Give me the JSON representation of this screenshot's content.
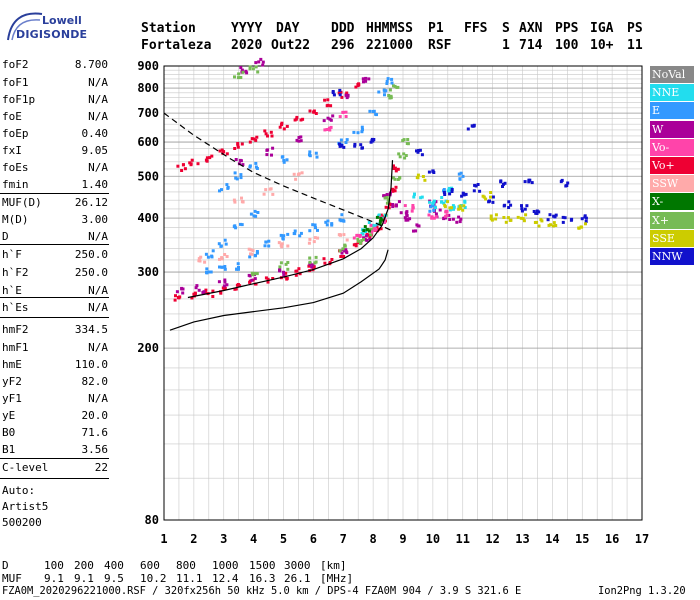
{
  "logo": {
    "line1": "Lowell",
    "line2": "DIGISONDE"
  },
  "header": {
    "row1": [
      "Station",
      "YYYY",
      "DAY",
      "DDD",
      "HHMMSS",
      "P1",
      "FFS",
      "S",
      "AXN",
      "PPS",
      "IGA",
      "PS"
    ],
    "row2": [
      "Fortaleza",
      "2020",
      "Out22",
      "296",
      "221000",
      "RSF",
      "1",
      "714",
      "100",
      "10+",
      "11"
    ]
  },
  "params": [
    {
      "label": "foF2",
      "value": "8.700"
    },
    {
      "label": "foF1",
      "value": "N/A"
    },
    {
      "label": "foF1p",
      "value": "N/A"
    },
    {
      "label": "foE",
      "value": "N/A"
    },
    {
      "label": "foEp",
      "value": "0.40"
    },
    {
      "label": "fxI",
      "value": "9.05"
    },
    {
      "label": "foEs",
      "value": "N/A"
    },
    {
      "label": "fmin",
      "value": "1.40"
    },
    {
      "label": "MUF(D)",
      "value": "26.12"
    },
    {
      "label": "M(D)",
      "value": "3.00"
    },
    {
      "label": "D",
      "value": "N/A"
    },
    {
      "label": "h`F",
      "value": "250.0"
    },
    {
      "label": "h`F2",
      "value": "250.0"
    },
    {
      "label": "h`E",
      "value": "N/A"
    },
    {
      "label": "h`Es",
      "value": "N/A"
    },
    {
      "label": "hmF2",
      "value": "334.5"
    },
    {
      "label": "hmF1",
      "value": "N/A"
    },
    {
      "label": "hmE",
      "value": "110.0"
    },
    {
      "label": "yF2",
      "value": "82.0"
    },
    {
      "label": "yF1",
      "value": "N/A"
    },
    {
      "label": "yE",
      "value": "20.0"
    },
    {
      "label": "B0",
      "value": "71.6"
    },
    {
      "label": "B1",
      "value": "3.56"
    },
    {
      "label": "C-level",
      "value": "22"
    }
  ],
  "auto": {
    "line1": "Auto:",
    "line2": "Artist5",
    "line3": "500200"
  },
  "legend": [
    {
      "label": "NoVal",
      "color": "#888888"
    },
    {
      "label": "NNE",
      "color": "#22ddee"
    },
    {
      "label": "E",
      "color": "#3399ff"
    },
    {
      "label": "W",
      "color": "#aa0099"
    },
    {
      "label": "Vo-",
      "color": "#ff44aa"
    },
    {
      "label": "Vo+",
      "color": "#ee0033"
    },
    {
      "label": "SSW",
      "color": "#ffaaaa"
    },
    {
      "label": "X-",
      "color": "#007700"
    },
    {
      "label": "X+",
      "color": "#77bb55"
    },
    {
      "label": "SSE",
      "color": "#cccc00"
    },
    {
      "label": "NNW",
      "color": "#1111cc"
    }
  ],
  "footer": {
    "d_label": "D",
    "d_values": [
      "100",
      "200",
      "400",
      "600",
      "800",
      "1000",
      "1500",
      "3000",
      "[km]"
    ],
    "muf_label": "MUF",
    "muf_values": [
      "9.1",
      "9.1",
      "9.5",
      "10.2",
      "11.1",
      "12.4",
      "16.3",
      "26.1",
      "[MHz]"
    ],
    "file_line": "FZA0M_2020296221000.RSF / 320fx256h 50 kHz 5.0 km / DPS-4 FZA0M 904 / 3.9 S 321.6 E",
    "version": "Ion2Png 1.3.20"
  },
  "chart_data": {
    "type": "scatter",
    "xlim": [
      1,
      17
    ],
    "ylim": [
      80,
      900
    ],
    "y_axis": "log",
    "xticks": [
      1,
      2,
      3,
      4,
      5,
      6,
      7,
      8,
      9,
      10,
      11,
      12,
      13,
      14,
      15,
      16,
      17
    ],
    "yticks": [
      80,
      200,
      300,
      400,
      500,
      600,
      700,
      800,
      900
    ],
    "grid": true,
    "series": [
      {
        "name": "Vo+",
        "points": [
          [
            1.5,
            262
          ],
          [
            2,
            264
          ],
          [
            2.5,
            268
          ],
          [
            3,
            273
          ],
          [
            3.5,
            278
          ],
          [
            4,
            283
          ],
          [
            4.5,
            288
          ],
          [
            5,
            294
          ],
          [
            5.5,
            300
          ],
          [
            6,
            308
          ],
          [
            6.5,
            318
          ],
          [
            7,
            330
          ],
          [
            7.5,
            345
          ],
          [
            7.9,
            360
          ],
          [
            8.2,
            380
          ],
          [
            8.4,
            400
          ],
          [
            8.55,
            430
          ],
          [
            8.65,
            470
          ],
          [
            8.7,
            520
          ],
          [
            1.6,
            525
          ],
          [
            2,
            535
          ],
          [
            2.5,
            550
          ],
          [
            3,
            565
          ],
          [
            3.5,
            585
          ],
          [
            4,
            605
          ],
          [
            4.5,
            630
          ],
          [
            5,
            655
          ],
          [
            5.5,
            680
          ],
          [
            6,
            705
          ],
          [
            6.5,
            740
          ],
          [
            7,
            775
          ],
          [
            7.5,
            805
          ]
        ]
      },
      {
        "name": "W",
        "points": [
          [
            1.6,
            270
          ],
          [
            2.2,
            274
          ],
          [
            3,
            283
          ],
          [
            4,
            292
          ],
          [
            5,
            300
          ],
          [
            6,
            312
          ],
          [
            7,
            335
          ],
          [
            7.8,
            360
          ],
          [
            8.5,
            450
          ],
          [
            8.8,
            430
          ],
          [
            9,
            410
          ],
          [
            9.2,
            400
          ],
          [
            9.5,
            380
          ],
          [
            10,
            430
          ],
          [
            10.2,
            410
          ],
          [
            10.5,
            400
          ],
          [
            10.8,
            395
          ],
          [
            3.5,
            540
          ],
          [
            4.5,
            570
          ],
          [
            5.5,
            610
          ],
          [
            6.5,
            680
          ],
          [
            7.2,
            760
          ],
          [
            7.8,
            830
          ],
          [
            4.2,
            920
          ],
          [
            3.7,
            880
          ]
        ]
      },
      {
        "name": "X+",
        "points": [
          [
            4,
            300
          ],
          [
            5,
            310
          ],
          [
            6,
            320
          ],
          [
            7,
            340
          ],
          [
            7.6,
            355
          ],
          [
            8,
            372
          ],
          [
            8.3,
            400
          ],
          [
            8.5,
            440
          ],
          [
            8.8,
            500
          ],
          [
            9,
            560
          ],
          [
            9.1,
            600
          ],
          [
            8.5,
            760
          ],
          [
            8.7,
            800
          ],
          [
            3.5,
            860
          ],
          [
            4,
            880
          ]
        ]
      },
      {
        "name": "E",
        "points": [
          [
            2.5,
            300
          ],
          [
            3,
            305
          ],
          [
            3.5,
            310
          ],
          [
            4,
            330
          ],
          [
            4.5,
            350
          ],
          [
            5,
            360
          ],
          [
            5.5,
            370
          ],
          [
            6,
            380
          ],
          [
            6.5,
            390
          ],
          [
            7,
            400
          ],
          [
            2.5,
            330
          ],
          [
            3,
            350
          ],
          [
            3.5,
            380
          ],
          [
            4,
            410
          ],
          [
            3,
            470
          ],
          [
            3.5,
            500
          ],
          [
            4,
            530
          ],
          [
            5,
            545
          ],
          [
            6,
            560
          ],
          [
            7,
            600
          ],
          [
            7.5,
            640
          ],
          [
            8,
            700
          ],
          [
            8.3,
            780
          ],
          [
            8.5,
            830
          ],
          [
            10,
            420
          ],
          [
            10.5,
            460
          ],
          [
            11,
            500
          ]
        ]
      },
      {
        "name": "NNE",
        "points": [
          [
            7.6,
            372
          ],
          [
            8,
            385
          ],
          [
            8.3,
            400
          ],
          [
            10,
            430
          ],
          [
            10.3,
            440
          ],
          [
            10.6,
            420
          ],
          [
            11,
            430
          ],
          [
            9.5,
            450
          ],
          [
            10.5,
            470
          ]
        ]
      },
      {
        "name": "SSW",
        "points": [
          [
            2.3,
            320
          ],
          [
            3,
            325
          ],
          [
            4,
            335
          ],
          [
            5,
            345
          ],
          [
            6,
            355
          ],
          [
            7,
            362
          ],
          [
            3.5,
            440
          ],
          [
            4.5,
            460
          ],
          [
            5.5,
            500
          ]
        ]
      },
      {
        "name": "Vo-",
        "points": [
          [
            7.5,
            362
          ],
          [
            8,
            378
          ],
          [
            8.4,
            395
          ],
          [
            9.2,
            420
          ],
          [
            10,
            400
          ],
          [
            10.5,
            410
          ],
          [
            6.5,
            640
          ],
          [
            7,
            700
          ]
        ]
      },
      {
        "name": "NNW",
        "points": [
          [
            7,
            590
          ],
          [
            7.5,
            585
          ],
          [
            8,
            600
          ],
          [
            9.5,
            570
          ],
          [
            10,
            510
          ],
          [
            10.5,
            460
          ],
          [
            11,
            450
          ],
          [
            11.5,
            470
          ],
          [
            12,
            440
          ],
          [
            12.5,
            430
          ],
          [
            13,
            420
          ],
          [
            13.5,
            410
          ],
          [
            14,
            400
          ],
          [
            14.5,
            395
          ],
          [
            15,
            400
          ],
          [
            12.3,
            480
          ],
          [
            13.2,
            490
          ],
          [
            14.4,
            480
          ],
          [
            6.8,
            780
          ],
          [
            11.3,
            650
          ]
        ]
      },
      {
        "name": "SSE",
        "points": [
          [
            10.5,
            430
          ],
          [
            11,
            420
          ],
          [
            12,
            400
          ],
          [
            12.5,
            395
          ],
          [
            13,
            400
          ],
          [
            13.5,
            390
          ],
          [
            14,
            390
          ],
          [
            15,
            385
          ],
          [
            9.6,
            495
          ],
          [
            11.8,
            450
          ]
        ]
      },
      {
        "name": "X-",
        "points": [
          [
            7.8,
            380
          ],
          [
            8.2,
            395
          ]
        ]
      }
    ],
    "curves": [
      {
        "name": "profile-solid",
        "style": "solid",
        "points": [
          [
            1.2,
            220
          ],
          [
            2,
            230
          ],
          [
            3,
            238
          ],
          [
            4,
            243
          ],
          [
            5,
            248
          ],
          [
            6,
            255
          ],
          [
            7,
            268
          ],
          [
            7.6,
            285
          ],
          [
            8.2,
            305
          ],
          [
            8.4,
            320
          ],
          [
            8.5,
            338
          ]
        ]
      },
      {
        "name": "profile-dashed",
        "style": "dashed",
        "points": [
          [
            1.0,
            700
          ],
          [
            1.5,
            660
          ],
          [
            2,
            622
          ],
          [
            2.6,
            585
          ],
          [
            3.2,
            550
          ],
          [
            4,
            510
          ],
          [
            5,
            475
          ],
          [
            6,
            445
          ],
          [
            7,
            418
          ],
          [
            8,
            392
          ],
          [
            8.6,
            375
          ]
        ]
      },
      {
        "name": "o-trace",
        "style": "solid",
        "points": [
          [
            1.8,
            262
          ],
          [
            3,
            272
          ],
          [
            4,
            282
          ],
          [
            5,
            292
          ],
          [
            6,
            304
          ],
          [
            7,
            322
          ],
          [
            7.6,
            340
          ],
          [
            8,
            360
          ],
          [
            8.3,
            385
          ],
          [
            8.5,
            420
          ],
          [
            8.6,
            470
          ],
          [
            8.65,
            545
          ]
        ]
      }
    ]
  }
}
